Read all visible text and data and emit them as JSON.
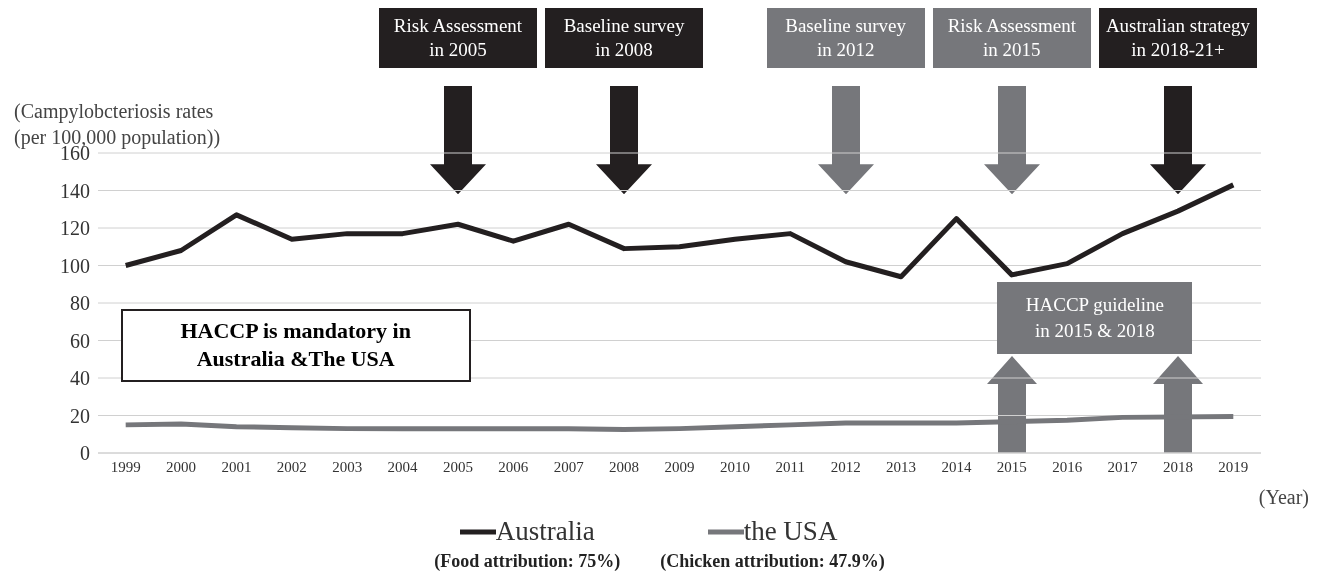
{
  "chart_data": {
    "type": "line",
    "categories": [
      "1999",
      "2000",
      "2001",
      "2002",
      "2003",
      "2004",
      "2005",
      "2006",
      "2007",
      "2008",
      "2009",
      "2010",
      "2011",
      "2012",
      "2013",
      "2014",
      "2015",
      "2016",
      "2017",
      "2018",
      "2019"
    ],
    "series": [
      {
        "name": "Australia",
        "color": "#231f20",
        "values": [
          100,
          108,
          127,
          114,
          117,
          117,
          122,
          113,
          122,
          109,
          110,
          114,
          117,
          102,
          94,
          125,
          95,
          101,
          117,
          129,
          143
        ]
      },
      {
        "name": "the USA",
        "color": "#76777b",
        "values": [
          15,
          15.5,
          14,
          13.5,
          13,
          13,
          13,
          13,
          13,
          12.5,
          13,
          14,
          15,
          16,
          16,
          16,
          null,
          17.5,
          19,
          null,
          19.5
        ]
      }
    ],
    "ylabel": "(Campylobcteriosis rates\n(per 100,000 population))",
    "xlabel": "(Year)",
    "ylim": [
      0,
      160
    ],
    "yticks": [
      0,
      20,
      40,
      60,
      80,
      100,
      120,
      140,
      160
    ],
    "grid": "y",
    "legend": "bottom",
    "marker": "none",
    "line_style": "solid",
    "annotations": [
      "Risk Assessment\nin 2005",
      "Baseline survey\nin 2008",
      "Baseline survey\nin 2012",
      "Risk Assessment\nin 2015",
      "Australian strategy\nin 2018-21+",
      "HACCP guideline\nin 2015 & 2018",
      "HACCP is mandatory in\nAustralia &The USA",
      "(Food attribution: 75%)",
      "(Chicken attribution: 47.9%)"
    ]
  }
}
